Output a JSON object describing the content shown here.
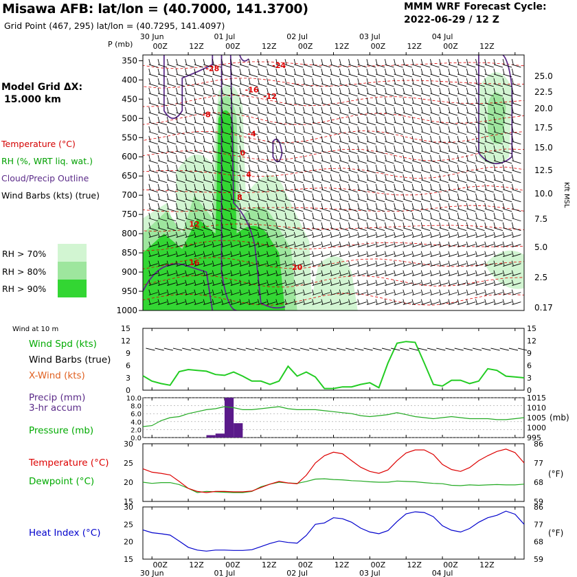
{
  "header": {
    "title": "Misawa AFB:  lat/lon = (40.7000, 141.3700)",
    "subtitle": "Grid Point (467, 295) lat/lon = (40.7295, 141.4097)",
    "cycle_line1": "MMM WRF Forecast Cycle:",
    "cycle_line2": "2022-06-29 / 12  Z",
    "model_grid_line1": "Model Grid ΔX:",
    "model_grid_line2": "15.000 km"
  },
  "legend": {
    "temperature": "Temperature (°C)",
    "rh": "RH (%, WRT liq. wat.)",
    "cloud": "Cloud/Precip Outline",
    "wind": "Wind Barbs (kts) (true)",
    "rh70": "RH > 70%",
    "rh80": "RH > 80%",
    "rh90": "RH > 90%",
    "wind_at_10m": "Wind at 10 m",
    "wind_spd": "Wind Spd (kts)",
    "wind_barbs": "Wind Barbs (true)",
    "x_wind": "X-Wind (kts)",
    "precip": "Precip (mm)",
    "precip_accum": "3-hr accum",
    "pressure": "Pressure (mb)",
    "temperature2": "Temperature (°C)",
    "dewpoint": "Dewpoint (°C)",
    "heat_index": "Heat Index (°C)"
  },
  "colors": {
    "temperature": "#dd0000",
    "rh": "#00aa00",
    "cloud": "#5a2a88",
    "rh70": "#d2f5d2",
    "rh80": "#9ee69e",
    "rh90": "#33d633",
    "heat_index": "#0000cc",
    "precip_bar": "#5a1a8a"
  },
  "chart_data": [
    {
      "type": "heatmap",
      "title": "Time-height cross section",
      "ylabel": "P (mb)",
      "y2label": "Kft MSL",
      "x_top_dates": [
        "30 Jun",
        "01 Jul",
        "02 Jul",
        "03 Jul",
        "04 Jul"
      ],
      "x_ticks": [
        "00Z",
        "12Z",
        "00Z",
        "12Z",
        "00Z",
        "12Z",
        "00Z",
        "12Z",
        "00Z",
        "12Z"
      ],
      "pressure_ticks": [
        350,
        400,
        450,
        500,
        550,
        600,
        650,
        700,
        750,
        800,
        850,
        900,
        950,
        1000
      ],
      "kft_ticks": [
        "25.0",
        "22.5",
        "20.0",
        "17.5",
        "15.0",
        "12.5",
        "10.0",
        "7.5",
        "5.0",
        "2.5",
        "0.17"
      ],
      "temperature_contour_labels": [
        {
          "hour": 20,
          "p": 370,
          "value": "-28"
        },
        {
          "hour": 42,
          "p": 362,
          "value": "-24"
        },
        {
          "hour": 33,
          "p": 425,
          "value": "-16"
        },
        {
          "hour": 39,
          "p": 442,
          "value": "-12"
        },
        {
          "hour": 18,
          "p": 490,
          "value": "-8"
        },
        {
          "hour": 33,
          "p": 540,
          "value": "-4"
        },
        {
          "hour": 30,
          "p": 590,
          "value": "0"
        },
        {
          "hour": 32,
          "p": 645,
          "value": "4"
        },
        {
          "hour": 29,
          "p": 705,
          "value": "8"
        },
        {
          "hour": 14,
          "p": 775,
          "value": "12"
        },
        {
          "hour": 14,
          "p": 875,
          "value": "16"
        },
        {
          "hour": 48,
          "p": 887,
          "value": "20"
        }
      ]
    },
    {
      "type": "line",
      "title": "Wind Spd (kts)",
      "x_hours": [
        0,
        6,
        12,
        18,
        24,
        30,
        36,
        42,
        48,
        54,
        60,
        66,
        72,
        78,
        84,
        90,
        96,
        102,
        108,
        114,
        120
      ],
      "x_tick_labels": [
        "00Z",
        "12Z",
        "00Z",
        "12Z",
        "00Z",
        "12Z",
        "00Z",
        "12Z",
        "00Z",
        "12Z"
      ],
      "ylim": [
        0,
        15
      ],
      "yticks": [
        0,
        3,
        6,
        9,
        12,
        15
      ],
      "series": [
        {
          "name": "Wind Spd (kts)",
          "x": [
            -3,
            0,
            3,
            6,
            9,
            12,
            15,
            18,
            21,
            24,
            27,
            30,
            33,
            36,
            39,
            42,
            45,
            48,
            51,
            54,
            57,
            60,
            63,
            66,
            69,
            72,
            75,
            78,
            81,
            84,
            87,
            90,
            93,
            96,
            99,
            102,
            105,
            108,
            111,
            114,
            117,
            120,
            123
          ],
          "values": [
            3.5,
            2.2,
            1.6,
            1.2,
            4.5,
            5.0,
            4.8,
            4.6,
            3.8,
            3.6,
            4.4,
            3.4,
            2.2,
            2.2,
            1.4,
            2.2,
            5.8,
            3.4,
            4.4,
            3.2,
            0.4,
            0.4,
            0.8,
            0.8,
            1.4,
            1.8,
            0.6,
            6.6,
            11.4,
            11.8,
            11.6,
            6.6,
            1.4,
            1.0,
            2.4,
            2.4,
            1.6,
            2.2,
            5.2,
            4.8,
            3.4,
            3.2,
            3.0
          ]
        }
      ]
    },
    {
      "type": "bar",
      "title": "Precip (mm) 3-hr accum / Pressure (mb)",
      "ylim": [
        0,
        10
      ],
      "yticks": [
        "0.0",
        "2.0",
        "4.0",
        "6.0",
        "8.0",
        "10.0"
      ],
      "y2lim": [
        995,
        1015
      ],
      "y2ticks": [
        995,
        1000,
        1005,
        1010,
        1015
      ],
      "y2label": "(mb)",
      "precip_bars": [
        {
          "hour_start": 18,
          "hour_end": 21,
          "value": 0.6
        },
        {
          "hour_start": 21,
          "hour_end": 24,
          "value": 1.0
        },
        {
          "hour_start": 24,
          "hour_end": 27,
          "value": 10.0
        },
        {
          "hour_start": 27,
          "hour_end": 30,
          "value": 3.6
        }
      ],
      "series": [
        {
          "name": "Pressure (mb)",
          "x": [
            -3,
            0,
            3,
            6,
            9,
            12,
            15,
            18,
            21,
            24,
            27,
            30,
            33,
            36,
            39,
            42,
            45,
            48,
            51,
            54,
            57,
            60,
            63,
            66,
            69,
            72,
            75,
            78,
            81,
            84,
            87,
            90,
            93,
            96,
            99,
            102,
            105,
            108,
            111,
            114,
            117,
            120,
            123
          ],
          "values": [
            1000.5,
            1001,
            1003.5,
            1005,
            1005.5,
            1007,
            1008,
            1009,
            1009.5,
            1010.5,
            1010,
            1009,
            1009,
            1009.5,
            1010,
            1010.5,
            1009.5,
            1009,
            1009,
            1009,
            1008.5,
            1008,
            1007.5,
            1007,
            1006,
            1005.5,
            1006,
            1006.5,
            1007.5,
            1006.5,
            1005.5,
            1005,
            1004.5,
            1005,
            1005.5,
            1005,
            1004.5,
            1004.5,
            1004.5,
            1004,
            1004,
            1004.5,
            1005
          ]
        }
      ]
    },
    {
      "type": "line",
      "title": "Temperature / Dewpoint",
      "ylim": [
        15,
        30
      ],
      "yticks": [
        15,
        20,
        25,
        30
      ],
      "y2ticks": [
        59,
        68,
        77,
        86
      ],
      "y2label": "(°F)",
      "series": [
        {
          "name": "Temperature (°C)",
          "x": [
            -3,
            0,
            3,
            6,
            9,
            12,
            15,
            18,
            21,
            24,
            27,
            30,
            33,
            36,
            39,
            42,
            45,
            48,
            51,
            54,
            57,
            60,
            63,
            66,
            69,
            72,
            75,
            78,
            81,
            84,
            87,
            90,
            93,
            96,
            99,
            102,
            105,
            108,
            111,
            114,
            117,
            120,
            123
          ],
          "values": [
            23.5,
            22.6,
            22.3,
            21.9,
            20.2,
            18.4,
            17.6,
            17.3,
            17.6,
            17.6,
            17.5,
            17.5,
            17.7,
            18.6,
            19.5,
            20.2,
            19.8,
            19.6,
            21.8,
            25.0,
            26.9,
            27.8,
            27.4,
            25.6,
            23.9,
            22.8,
            22.3,
            23.2,
            25.6,
            27.6,
            28.4,
            28.4,
            27.2,
            24.6,
            23.3,
            22.8,
            23.8,
            25.6,
            26.9,
            28.0,
            28.6,
            27.7,
            25.0
          ]
        },
        {
          "name": "Dewpoint (°C)",
          "x": [
            -3,
            0,
            3,
            6,
            9,
            12,
            15,
            18,
            21,
            24,
            27,
            30,
            33,
            36,
            39,
            42,
            45,
            48,
            51,
            54,
            57,
            60,
            63,
            66,
            69,
            72,
            75,
            78,
            81,
            84,
            87,
            90,
            93,
            96,
            99,
            102,
            105,
            108,
            111,
            114,
            117,
            120,
            123
          ],
          "values": [
            20.0,
            19.7,
            19.9,
            19.9,
            19.4,
            18.4,
            17.3,
            17.6,
            17.5,
            17.4,
            17.3,
            17.3,
            17.6,
            18.8,
            19.5,
            20.0,
            19.8,
            19.7,
            20.2,
            20.8,
            20.9,
            20.7,
            20.6,
            20.4,
            20.3,
            20.1,
            20.0,
            20.0,
            20.3,
            20.2,
            20.1,
            19.9,
            19.7,
            19.6,
            19.2,
            19.1,
            19.3,
            19.2,
            19.3,
            19.4,
            19.3,
            19.3,
            19.5
          ]
        }
      ]
    },
    {
      "type": "line",
      "title": "Heat Index (°C)",
      "ylim": [
        15,
        30
      ],
      "yticks": [
        15,
        20,
        25,
        30
      ],
      "y2ticks": [
        59,
        68,
        77,
        86
      ],
      "y2label": "(°F)",
      "x_bottom_dates": [
        "30 Jun",
        "01 Jul",
        "02 Jul",
        "03 Jul",
        "04 Jul"
      ],
      "series": [
        {
          "name": "Heat Index (°C)",
          "x": [
            -3,
            0,
            3,
            6,
            9,
            12,
            15,
            18,
            21,
            24,
            27,
            30,
            33,
            36,
            39,
            42,
            45,
            48,
            51,
            54,
            57,
            60,
            63,
            66,
            69,
            72,
            75,
            78,
            81,
            84,
            87,
            90,
            93,
            96,
            99,
            102,
            105,
            108,
            111,
            114,
            117,
            120,
            123
          ],
          "values": [
            23.4,
            22.6,
            22.3,
            21.9,
            20.2,
            18.4,
            17.6,
            17.3,
            17.6,
            17.6,
            17.5,
            17.5,
            17.7,
            18.6,
            19.5,
            20.2,
            19.8,
            19.6,
            21.8,
            25.0,
            25.4,
            26.9,
            26.6,
            25.6,
            23.9,
            22.8,
            22.3,
            23.2,
            25.8,
            28.0,
            28.6,
            28.4,
            27.2,
            24.6,
            23.3,
            22.8,
            23.8,
            25.6,
            26.9,
            27.6,
            28.8,
            27.9,
            25.0
          ]
        }
      ]
    }
  ]
}
